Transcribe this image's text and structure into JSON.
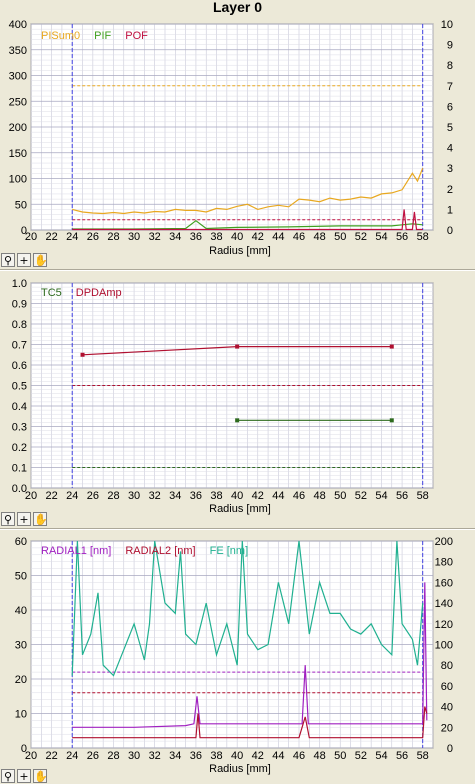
{
  "window": {
    "title": "Layer 0"
  },
  "toolbar": {
    "icons": [
      "zoom-icon",
      "crosshair-icon",
      "hand-icon"
    ]
  },
  "chart_data": [
    {
      "type": "line",
      "xlabel": "Radius [mm]",
      "xlim": [
        20,
        59
      ],
      "xticks": [
        20,
        22,
        24,
        26,
        28,
        30,
        32,
        34,
        36,
        38,
        40,
        42,
        44,
        46,
        48,
        50,
        52,
        54,
        56,
        58
      ],
      "ylim_left": [
        0,
        400
      ],
      "yticks_left": [
        0,
        50,
        100,
        150,
        200,
        250,
        300,
        350,
        400
      ],
      "ylim_right": [
        0,
        10
      ],
      "yticks_right": [
        0,
        1,
        2,
        3,
        4,
        5,
        6,
        7,
        8,
        9,
        10
      ],
      "vlines": [
        24,
        58
      ],
      "legend": [
        {
          "label": "PISum0",
          "color": "#e8a820"
        },
        {
          "label": "PIF",
          "color": "#40a020"
        },
        {
          "label": "POF",
          "color": "#c01040"
        }
      ],
      "hlines": [
        {
          "axis": "left",
          "y": 280,
          "color": "#e8a820"
        },
        {
          "axis": "left",
          "y": 20,
          "color": "#c01040"
        }
      ],
      "series": [
        {
          "name": "PISum0",
          "axis": "left",
          "color": "#e8a820",
          "x": [
            24,
            25,
            26,
            27,
            28,
            29,
            30,
            31,
            32,
            33,
            34,
            35,
            36,
            37,
            38,
            39,
            40,
            41,
            42,
            43,
            44,
            45,
            46,
            47,
            48,
            49,
            50,
            51,
            52,
            53,
            54,
            55,
            56,
            57,
            57.5,
            58
          ],
          "values": [
            40,
            35,
            33,
            32,
            34,
            32,
            35,
            33,
            36,
            35,
            40,
            38,
            38,
            35,
            42,
            40,
            46,
            50,
            40,
            45,
            48,
            45,
            60,
            58,
            55,
            62,
            58,
            60,
            64,
            62,
            70,
            72,
            78,
            110,
            95,
            120
          ]
        },
        {
          "name": "PIF",
          "axis": "left",
          "color": "#40a020",
          "x": [
            24,
            30,
            35,
            36,
            37,
            40,
            45,
            50,
            55,
            56,
            57,
            58
          ],
          "values": [
            2,
            2,
            3,
            18,
            3,
            5,
            6,
            8,
            8,
            10,
            12,
            10
          ]
        },
        {
          "name": "POF",
          "axis": "left",
          "color": "#c01040",
          "x": [
            24,
            56,
            56.2,
            56.4,
            57,
            57.2,
            57.4,
            58
          ],
          "values": [
            1,
            1,
            40,
            1,
            1,
            35,
            1,
            1
          ]
        }
      ]
    },
    {
      "type": "line",
      "xlabel": "Radius [mm]",
      "xlim": [
        20,
        59
      ],
      "xticks": [
        20,
        22,
        24,
        26,
        28,
        30,
        32,
        34,
        36,
        38,
        40,
        42,
        44,
        46,
        48,
        50,
        52,
        54,
        56,
        58
      ],
      "ylim": [
        0,
        1
      ],
      "yticks": [
        0,
        0.1,
        0.2,
        0.3,
        0.4,
        0.5,
        0.6,
        0.7,
        0.8,
        0.9,
        1.0
      ],
      "ytick_labels": [
        "0.0",
        "0.1",
        "0.2",
        "0.3",
        "0.4",
        "0.5",
        "0.6",
        "0.7",
        "0.8",
        "0.9",
        "1.0"
      ],
      "vlines": [
        24,
        58
      ],
      "legend": [
        {
          "label": "TC5",
          "color": "#2e6b1e"
        },
        {
          "label": "DPDAmp",
          "color": "#b01030"
        }
      ],
      "hlines": [
        {
          "y": 0.5,
          "color": "#b01030"
        },
        {
          "y": 0.1,
          "color": "#2e6b1e"
        }
      ],
      "series": [
        {
          "name": "TC5",
          "color": "#2e6b1e",
          "x": [
            40,
            55
          ],
          "values": [
            0.33,
            0.33
          ]
        },
        {
          "name": "DPDAmp",
          "color": "#b01030",
          "x": [
            25,
            40,
            55
          ],
          "values": [
            0.65,
            0.69,
            0.69
          ]
        }
      ]
    },
    {
      "type": "line",
      "xlabel": "Radius [mm]",
      "xlim": [
        20,
        59
      ],
      "xticks": [
        20,
        22,
        24,
        26,
        28,
        30,
        32,
        34,
        36,
        38,
        40,
        42,
        44,
        46,
        48,
        50,
        52,
        54,
        56,
        58
      ],
      "ylim_left": [
        0,
        60
      ],
      "yticks_left": [
        0,
        10,
        20,
        30,
        40,
        50,
        60
      ],
      "ylim_right": [
        0,
        200
      ],
      "yticks_right": [
        0,
        20,
        40,
        60,
        80,
        100,
        120,
        140,
        160,
        180,
        200
      ],
      "vlines": [
        24,
        58
      ],
      "legend": [
        {
          "label": "RADIAL1 [nm]",
          "color": "#a020c0"
        },
        {
          "label": "RADIAL2 [nm]",
          "color": "#b01030"
        },
        {
          "label": "FE [nm]",
          "color": "#20b090"
        }
      ],
      "hlines": [
        {
          "axis": "left",
          "y": 22,
          "color": "#a020c0"
        },
        {
          "axis": "left",
          "y": 16,
          "color": "#b01030"
        }
      ],
      "series": [
        {
          "name": "RADIAL1 [nm]",
          "axis": "left",
          "color": "#a020c0",
          "x": [
            24,
            30,
            35,
            35.8,
            36.1,
            36.4,
            38,
            45,
            46.3,
            46.6,
            46.9,
            50,
            55,
            58,
            58.2,
            58.4
          ],
          "values": [
            6,
            6,
            6.5,
            7,
            15,
            7,
            7,
            7,
            7,
            24,
            7,
            7,
            7,
            7,
            48,
            8
          ]
        },
        {
          "name": "RADIAL2 [nm]",
          "axis": "left",
          "color": "#b01030",
          "x": [
            24,
            30,
            36,
            36.2,
            36.4,
            40,
            46,
            46.6,
            47,
            50,
            55,
            58,
            58.2,
            58.4
          ],
          "values": [
            3,
            3,
            3,
            10,
            3,
            3,
            3,
            9,
            3,
            3,
            3,
            3,
            12,
            10
          ]
        },
        {
          "name": "FE [nm]",
          "axis": "right",
          "color": "#20b090",
          "x": [
            24,
            24.5,
            25,
            25.8,
            26.5,
            27,
            28,
            29,
            30,
            31,
            31.5,
            32,
            33,
            34,
            34.5,
            35,
            36,
            37,
            38,
            39,
            40,
            40.5,
            41,
            42,
            43,
            44,
            45,
            46,
            47,
            48,
            49,
            50,
            51,
            52,
            53,
            54,
            55,
            55.5,
            56,
            57,
            57.5,
            58
          ],
          "values": [
            70,
            200,
            90,
            110,
            150,
            80,
            70,
            95,
            120,
            85,
            120,
            200,
            140,
            130,
            190,
            110,
            100,
            140,
            90,
            120,
            80,
            200,
            110,
            95,
            100,
            160,
            120,
            200,
            110,
            160,
            130,
            130,
            115,
            110,
            120,
            100,
            90,
            200,
            120,
            105,
            80,
            140
          ]
        }
      ]
    }
  ]
}
